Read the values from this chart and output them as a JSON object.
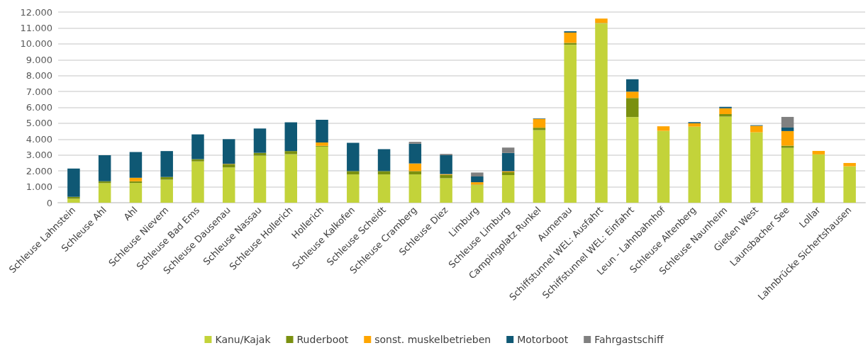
{
  "chart_data": {
    "type": "bar",
    "stacked": true,
    "categories": [
      "Schleuse Lahnstein",
      "Schleuse Ahl",
      "Ahl",
      "Schleuse Nievern",
      "Schleuse Bad Ems",
      "Schleuse Dausenau",
      "Schleuse Nassau",
      "Schleuse Hollerich",
      "Hollerich",
      "Schleuse Kalkofen",
      "Schleuse Scheidt",
      "Schleuse Cramberg",
      "Schleuse Diez",
      "Limburg",
      "Schleuse Limburg",
      "Campingplatz Runkel",
      "Aumenau",
      "Schiffstunnel WEL: Ausfahrt",
      "Schiffstunnel WEL: Einfahrt",
      "Leun - Lahnbahnhof",
      "Schleuse Altenberg",
      "Schleuse Naunheim",
      "Gießen West",
      "Launsbacher See",
      "Lollar",
      "Lahnbrücke Sichertshausen"
    ],
    "series": [
      {
        "name": "Kanu/Kajak",
        "color": "#c3d33a",
        "values": [
          250,
          1230,
          1240,
          1450,
          2600,
          2220,
          2960,
          3050,
          3530,
          1780,
          1780,
          1780,
          1540,
          1110,
          1740,
          4570,
          9940,
          11280,
          5390,
          4520,
          4790,
          5420,
          4430,
          3450,
          3040,
          2290
        ]
      },
      {
        "name": "Ruderboot",
        "color": "#7a9010",
        "values": [
          120,
          120,
          110,
          170,
          140,
          190,
          180,
          200,
          50,
          210,
          210,
          210,
          210,
          30,
          180,
          150,
          120,
          30,
          1200,
          null,
          null,
          160,
          null,
          140,
          null,
          null
        ]
      },
      {
        "name": "sonst. muskelbetrieben",
        "color": "#ffa500",
        "values": [
          null,
          null,
          220,
          null,
          null,
          30,
          null,
          null,
          210,
          null,
          null,
          480,
          50,
          150,
          60,
          560,
          650,
          280,
          400,
          290,
          210,
          360,
          410,
          920,
          220,
          210
        ]
      },
      {
        "name": "Motorboot",
        "color": "#0f5874",
        "values": [
          1780,
          1640,
          1620,
          1630,
          1560,
          1560,
          1530,
          1810,
          1430,
          1780,
          1380,
          1240,
          1190,
          360,
          1150,
          30,
          80,
          null,
          780,
          null,
          70,
          90,
          40,
          220,
          null,
          null
        ]
      },
      {
        "name": "Fahrgastschiff",
        "color": "#808080",
        "values": [
          null,
          null,
          null,
          null,
          null,
          null,
          null,
          null,
          null,
          null,
          null,
          120,
          80,
          250,
          340,
          null,
          null,
          null,
          null,
          null,
          null,
          null,
          null,
          670,
          null,
          null
        ]
      }
    ],
    "ylim": [
      0,
      12000
    ],
    "yticks": [
      0,
      {
        "value": 1000,
        "label": "1.000"
      },
      {
        "value": 2000,
        "label": "2.000"
      },
      {
        "value": 3000,
        "label": "3.000"
      },
      {
        "value": 4000,
        "label": "4.000"
      },
      {
        "value": 5000,
        "label": "5.000"
      },
      {
        "value": 6000,
        "label": "6.000"
      },
      {
        "value": 7000,
        "label": "7.000"
      },
      {
        "value": 8000,
        "label": "8.000"
      },
      {
        "value": 9000,
        "label": "9.000"
      },
      {
        "value": 10000,
        "label": "10.000"
      },
      {
        "value": 11000,
        "label": "11.000"
      },
      {
        "value": 12000,
        "label": "12.000"
      }
    ],
    "grid": "y",
    "legend": "bottom"
  }
}
